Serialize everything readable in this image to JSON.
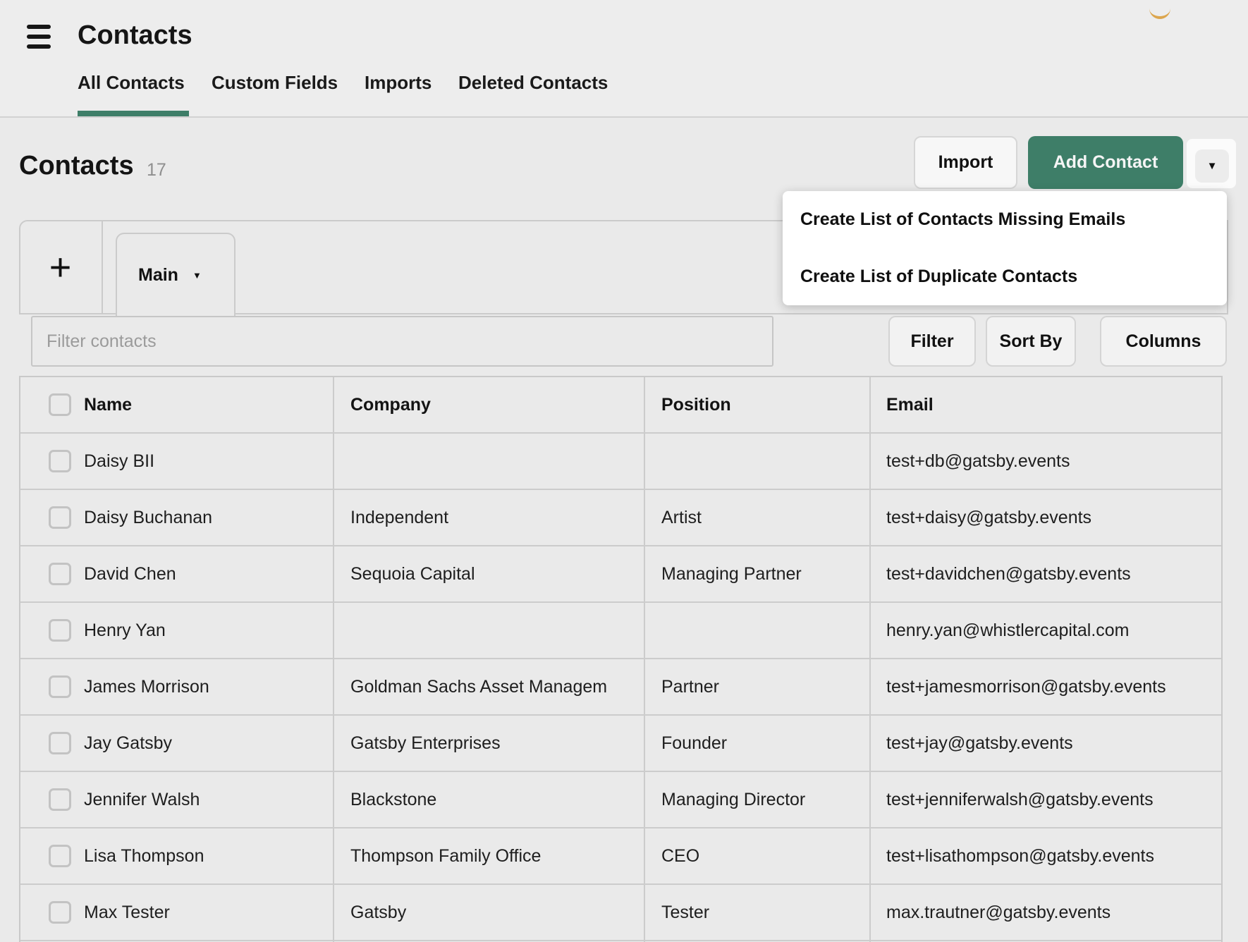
{
  "app": {
    "title": "Contacts"
  },
  "nav": {
    "tabs": [
      {
        "label": "All Contacts",
        "active": true
      },
      {
        "label": "Custom Fields",
        "active": false
      },
      {
        "label": "Imports",
        "active": false
      },
      {
        "label": "Deleted Contacts",
        "active": false
      }
    ]
  },
  "page": {
    "heading": "Contacts",
    "count": "17"
  },
  "actions": {
    "import_label": "Import",
    "add_contact_label": "Add Contact",
    "more_caret": "▼"
  },
  "menu": {
    "items": [
      {
        "label": "Create List of Contacts Missing Emails"
      },
      {
        "label": "Create List of Duplicate Contacts"
      }
    ]
  },
  "lists_bar": {
    "add_tab": "+",
    "active_tab": "Main",
    "tab_caret": "▼"
  },
  "filter": {
    "placeholder": "Filter contacts",
    "filter_label": "Filter",
    "sort_label": "Sort By",
    "columns_label": "Columns"
  },
  "table": {
    "columns": [
      "Name",
      "Company",
      "Position",
      "Email"
    ],
    "rows": [
      {
        "name": "Daisy BII",
        "company": "",
        "position": "",
        "email": "test+db@gatsby.events"
      },
      {
        "name": "Daisy Buchanan",
        "company": "Independent",
        "position": "Artist",
        "email": "test+daisy@gatsby.events"
      },
      {
        "name": "David Chen",
        "company": "Sequoia Capital",
        "position": "Managing Partner",
        "email": "test+davidchen@gatsby.events"
      },
      {
        "name": "Henry Yan",
        "company": "",
        "position": "",
        "email": "henry.yan@whistlercapital.com"
      },
      {
        "name": "James Morrison",
        "company": "Goldman Sachs Asset Managem",
        "position": "Partner",
        "email": "test+jamesmorrison@gatsby.events"
      },
      {
        "name": "Jay Gatsby",
        "company": "Gatsby Enterprises",
        "position": "Founder",
        "email": "test+jay@gatsby.events"
      },
      {
        "name": "Jennifer Walsh",
        "company": "Blackstone",
        "position": "Managing Director",
        "email": "test+jenniferwalsh@gatsby.events"
      },
      {
        "name": "Lisa Thompson",
        "company": "Thompson Family Office",
        "position": "CEO",
        "email": "test+lisathompson@gatsby.events"
      },
      {
        "name": "Max Tester",
        "company": "Gatsby",
        "position": "Tester",
        "email": "max.trautner@gatsby.events"
      }
    ]
  },
  "colors": {
    "accent_green": "#3E7E68",
    "logo_arc": "#DCA64E"
  }
}
